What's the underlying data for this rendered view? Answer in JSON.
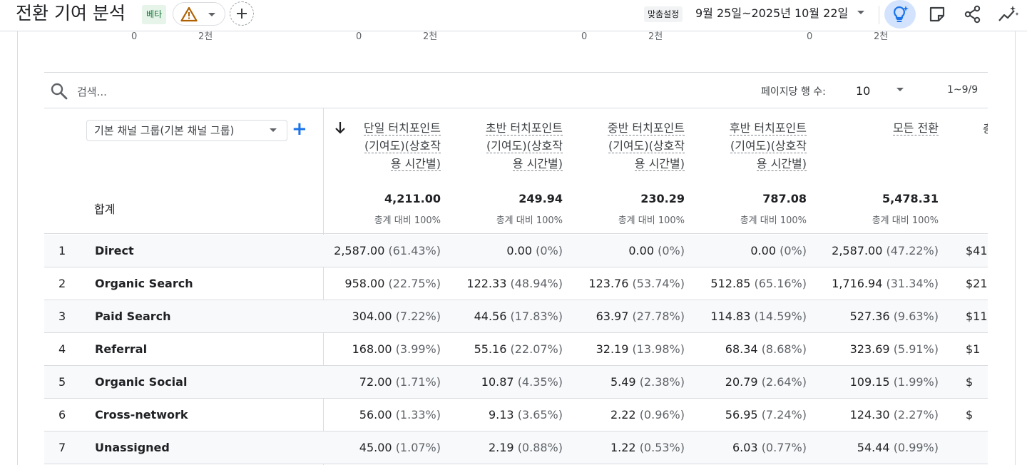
{
  "header": {
    "title": "전환 기여 분석",
    "beta": "베타",
    "custom_label": "맞춤설정",
    "date_range": "9월 25일~2025년 10월 22일"
  },
  "axis_ticks": [
    {
      "zero": "0",
      "max": "2천"
    },
    {
      "zero": "0",
      "max": "2천"
    },
    {
      "zero": "0",
      "max": "2천"
    },
    {
      "zero": "0",
      "max": "2천"
    }
  ],
  "toolbar": {
    "search_placeholder": "검색...",
    "rows_label": "페이지당 행 수:",
    "rows_value": "10",
    "pager": "1~9/9"
  },
  "table": {
    "dimension": "기본 채널 그룹(기본 채널 그룹)",
    "total_label": "합계",
    "columns": [
      {
        "lines": [
          "단일 터치포인트",
          "(기여도)(상호작",
          "용 시간별)"
        ],
        "total": "4,211.00",
        "sub": "총계 대비 100%"
      },
      {
        "lines": [
          "초반 터치포인트",
          "(기여도)(상호작",
          "용 시간별)"
        ],
        "total": "249.94",
        "sub": "총계 대비 100%"
      },
      {
        "lines": [
          "중반 터치포인트",
          "(기여도)(상호작",
          "용 시간별)"
        ],
        "total": "230.29",
        "sub": "총계 대비 100%"
      },
      {
        "lines": [
          "후반 터치포인트",
          "(기여도)(상호작",
          "용 시간별)"
        ],
        "total": "787.08",
        "sub": "총계 대비 100%"
      },
      {
        "lines": [
          "모든 전환"
        ],
        "total": "5,478.31",
        "sub": "총계 대비 100%"
      }
    ],
    "clipped_header": "총",
    "rows": [
      {
        "idx": "1",
        "channel": "Direct",
        "cells": [
          [
            "2,587.00",
            "(61.43%)"
          ],
          [
            "0.00",
            "(0%)"
          ],
          [
            "0.00",
            "(0%)"
          ],
          [
            "0.00",
            "(0%)"
          ],
          [
            "2,587.00",
            "(47.22%)"
          ]
        ],
        "clip": "$41"
      },
      {
        "idx": "2",
        "channel": "Organic Search",
        "cells": [
          [
            "958.00",
            "(22.75%)"
          ],
          [
            "122.33",
            "(48.94%)"
          ],
          [
            "123.76",
            "(53.74%)"
          ],
          [
            "512.85",
            "(65.16%)"
          ],
          [
            "1,716.94",
            "(31.34%)"
          ]
        ],
        "clip": "$21"
      },
      {
        "idx": "3",
        "channel": "Paid Search",
        "cells": [
          [
            "304.00",
            "(7.22%)"
          ],
          [
            "44.56",
            "(17.83%)"
          ],
          [
            "63.97",
            "(27.78%)"
          ],
          [
            "114.83",
            "(14.59%)"
          ],
          [
            "527.36",
            "(9.63%)"
          ]
        ],
        "clip": "$11"
      },
      {
        "idx": "4",
        "channel": "Referral",
        "cells": [
          [
            "168.00",
            "(3.99%)"
          ],
          [
            "55.16",
            "(22.07%)"
          ],
          [
            "32.19",
            "(13.98%)"
          ],
          [
            "68.34",
            "(8.68%)"
          ],
          [
            "323.69",
            "(5.91%)"
          ]
        ],
        "clip": "$1"
      },
      {
        "idx": "5",
        "channel": "Organic Social",
        "cells": [
          [
            "72.00",
            "(1.71%)"
          ],
          [
            "10.87",
            "(4.35%)"
          ],
          [
            "5.49",
            "(2.38%)"
          ],
          [
            "20.79",
            "(2.64%)"
          ],
          [
            "109.15",
            "(1.99%)"
          ]
        ],
        "clip": "$"
      },
      {
        "idx": "6",
        "channel": "Cross-network",
        "cells": [
          [
            "56.00",
            "(1.33%)"
          ],
          [
            "9.13",
            "(3.65%)"
          ],
          [
            "2.22",
            "(0.96%)"
          ],
          [
            "56.95",
            "(7.24%)"
          ],
          [
            "124.30",
            "(2.27%)"
          ]
        ],
        "clip": "$"
      },
      {
        "idx": "7",
        "channel": "Unassigned",
        "cells": [
          [
            "45.00",
            "(1.07%)"
          ],
          [
            "2.19",
            "(0.88%)"
          ],
          [
            "1.22",
            "(0.53%)"
          ],
          [
            "6.03",
            "(0.77%)"
          ],
          [
            "54.44",
            "(0.99%)"
          ]
        ],
        "clip": ""
      }
    ]
  },
  "icons": {
    "warning": "warning-icon",
    "add": "plus-icon",
    "insights": "lightbulb-sparkle-icon",
    "annotation": "note-icon",
    "share": "share-icon",
    "explore": "trend-sparkle-icon"
  },
  "colors": {
    "accent": "#1a73e8",
    "warning": "#b3261e",
    "beta_bg": "#e6f4ea",
    "beta_text": "#137333"
  }
}
